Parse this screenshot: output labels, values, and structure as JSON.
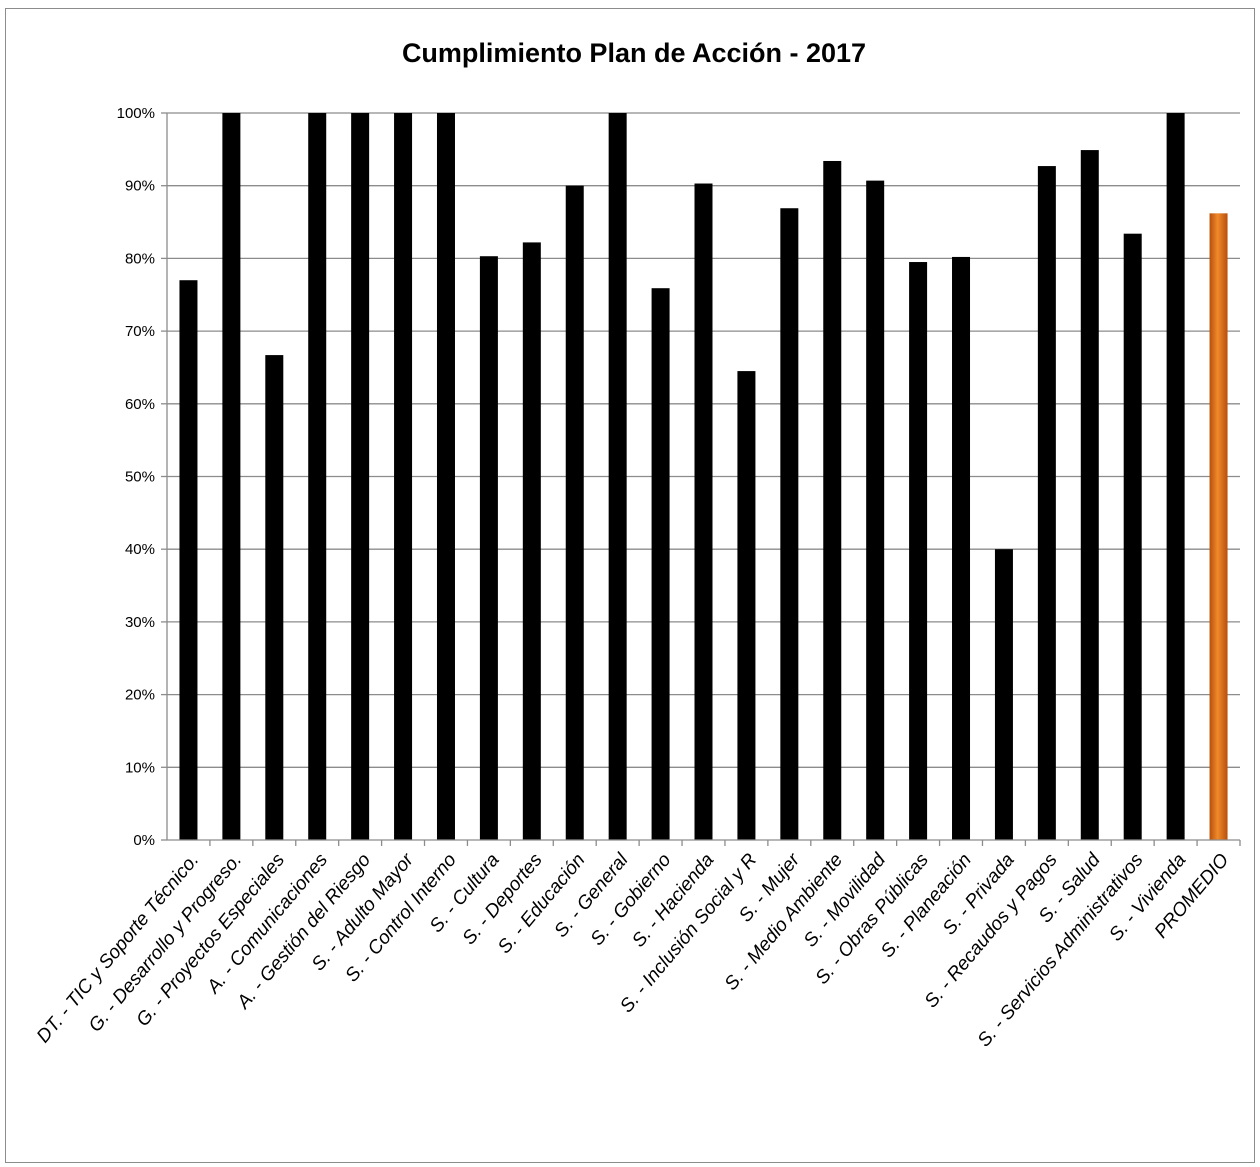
{
  "chart_data": {
    "type": "bar",
    "title": "Cumplimiento Plan de Acción - 2017",
    "xlabel": "",
    "ylabel": "",
    "ylim": [
      0,
      100
    ],
    "y_ticks": [
      "0%",
      "10%",
      "20%",
      "30%",
      "40%",
      "50%",
      "60%",
      "70%",
      "80%",
      "90%",
      "100%"
    ],
    "grid": "horizontal",
    "legend": "none",
    "categories": [
      "DT. - TIC y Soporte Técnico.",
      "G. - Desarrollo y Progreso.",
      "G. - Proyectos Especiales",
      "A. - Comunicaciones",
      "A. - Gestión del Riesgo",
      "S. - Adulto Mayor",
      "S. - Control Interno",
      "S. - Cultura",
      "S. - Deportes",
      "S. - Educación",
      "S. - General",
      "S. - Gobierno",
      "S. - Hacienda",
      "S. - Inclusión Social y R",
      "S. - Mujer",
      "S. - Medio Ambiente",
      "S. - Movilidad",
      "S. - Obras Públicas",
      "S. - Planeación",
      "S. - Privada",
      "S. - Recaudos y Pagos",
      "S. - Salud",
      "S. - Servicios Administrativos",
      "S. - Vivienda",
      "PROMEDIO"
    ],
    "values": [
      77,
      100,
      66.7,
      100,
      100,
      100,
      100,
      80.3,
      82.2,
      90,
      100,
      75.9,
      90.3,
      64.5,
      86.9,
      93.4,
      90.7,
      79.5,
      80.2,
      40,
      92.7,
      94.9,
      83.4,
      100,
      86.2
    ],
    "bar_color": "#000000",
    "highlight_index": 24,
    "highlight_color": "#e8711a"
  }
}
